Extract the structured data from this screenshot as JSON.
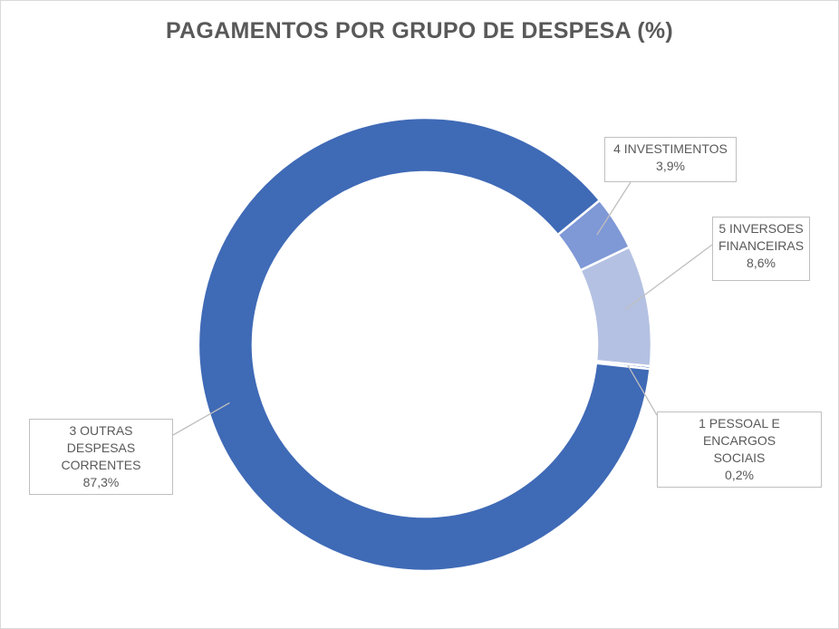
{
  "chart_data": {
    "type": "pie",
    "subtype": "doughnut",
    "title": "PAGAMENTOS POR GRUPO DE DESPESA (%)",
    "slices": [
      {
        "name_lines": [
          "1 PESSOAL E ENCARGOS",
          "SOCIAIS"
        ],
        "value": 0.2,
        "value_label": "0,2%",
        "color": "#4472c4"
      },
      {
        "name_lines": [
          "3 OUTRAS DESPESAS",
          "CORRENTES"
        ],
        "value": 87.3,
        "value_label": "87,3%",
        "color": "#3f6ab6"
      },
      {
        "name_lines": [
          "4 INVESTIMENTOS"
        ],
        "value": 3.9,
        "value_label": "3,9%",
        "color": "#7f98d6"
      },
      {
        "name_lines": [
          "5 INVERSOES",
          "FINANCEIRAS"
        ],
        "value": 8.6,
        "value_label": "8,6%",
        "color": "#b4c1e2"
      }
    ],
    "legend": "none",
    "data_labels": "callouts"
  }
}
